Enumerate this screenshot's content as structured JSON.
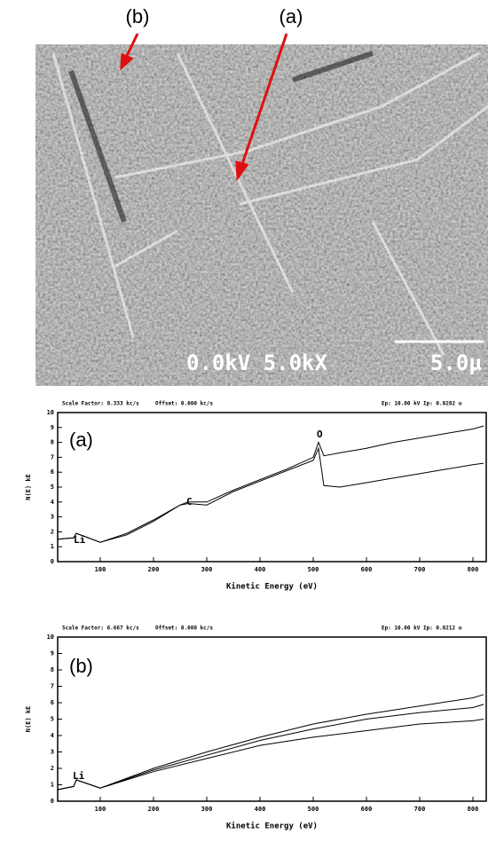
{
  "image": {
    "labels": [
      "(b)",
      "(a)"
    ],
    "caption": "0.0kV 5.0kX",
    "scale": "5.0µ"
  },
  "chart_data": [
    {
      "type": "line",
      "header": [
        "Scale Factor: 8.333 kc/s",
        "Offset: 0.000 kc/s",
        "Ep: 10.00 kV  Ip: 0.0282 u"
      ],
      "annotations": [
        "(a)",
        "Li",
        "C",
        "O"
      ],
      "xlabel": "Kinetic Energy (eV)",
      "ylabel": "N(E) kE",
      "x": [
        20,
        50,
        55,
        100,
        150,
        200,
        250,
        265,
        300,
        350,
        400,
        450,
        500,
        510,
        520,
        550,
        600,
        650,
        700,
        750,
        800,
        820
      ],
      "series": [
        {
          "color": "#000000",
          "values": [
            1.5,
            1.6,
            1.9,
            1.3,
            1.9,
            2.8,
            3.8,
            4.0,
            4.0,
            4.8,
            5.5,
            6.2,
            7.0,
            8.0,
            7.1,
            7.3,
            7.6,
            8.0,
            8.3,
            8.6,
            8.9,
            9.1
          ]
        },
        {
          "color": "#000000",
          "values": [
            1.5,
            1.6,
            1.9,
            1.3,
            1.8,
            2.7,
            3.8,
            3.9,
            3.8,
            4.7,
            5.4,
            6.1,
            6.8,
            7.6,
            5.1,
            5.0,
            5.3,
            5.6,
            5.9,
            6.2,
            6.5,
            6.6
          ]
        }
      ],
      "xlim": [
        20,
        825
      ],
      "xticks": [
        100,
        200,
        300,
        400,
        500,
        600,
        700,
        800
      ],
      "ylim": [
        0,
        10
      ],
      "yticks": [
        0,
        1,
        2,
        3,
        4,
        5,
        6,
        7,
        8,
        9,
        10
      ]
    },
    {
      "type": "line",
      "header": [
        "Scale Factor: 6.667 kc/s",
        "Offset: 0.000 kc/s",
        "Ep: 10.00 kV  Ip: 0.0212 u"
      ],
      "annotations": [
        "(b)",
        "Li"
      ],
      "xlabel": "Kinetic Energy (eV)",
      "ylabel": "N(E) kE",
      "x": [
        20,
        50,
        55,
        100,
        200,
        300,
        400,
        500,
        600,
        700,
        800,
        820
      ],
      "series": [
        {
          "color": "#000000",
          "values": [
            0.7,
            0.9,
            1.3,
            0.8,
            2.0,
            3.0,
            3.9,
            4.7,
            5.3,
            5.8,
            6.3,
            6.5
          ]
        },
        {
          "color": "#000000",
          "values": [
            0.7,
            0.9,
            1.3,
            0.8,
            1.9,
            2.8,
            3.7,
            4.4,
            5.0,
            5.4,
            5.7,
            5.9
          ]
        },
        {
          "color": "#000000",
          "values": [
            0.7,
            0.9,
            1.3,
            0.8,
            1.8,
            2.6,
            3.4,
            3.9,
            4.3,
            4.7,
            4.9,
            5.0
          ]
        }
      ],
      "xlim": [
        20,
        825
      ],
      "xticks": [
        100,
        200,
        300,
        400,
        500,
        600,
        700,
        800
      ],
      "ylim": [
        0,
        10
      ],
      "yticks": [
        0,
        1,
        2,
        3,
        4,
        5,
        6,
        7,
        8,
        9,
        10
      ]
    }
  ]
}
